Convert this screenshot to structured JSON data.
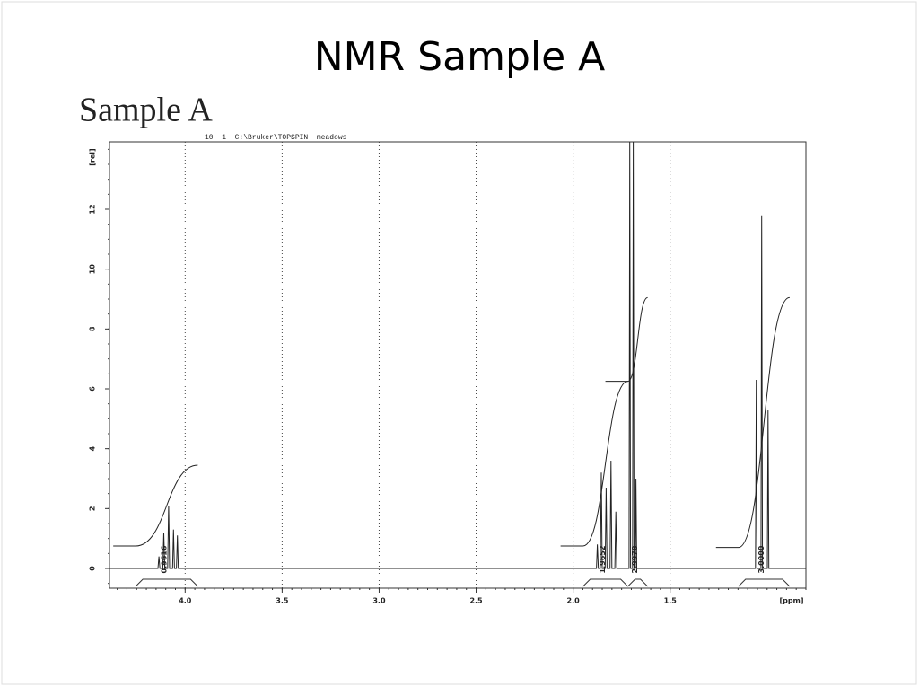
{
  "title": "NMR Sample A",
  "chart_data": {
    "type": "spectrum",
    "title": "Sample A",
    "header": "10  1  C:\\Bruker\\TOPSPIN  meadows",
    "x_label": "[ppm]",
    "y_label": "[rel]",
    "color": "#222222",
    "grid": true,
    "xlim": [
      4.39,
      0.8
    ],
    "ylim": [
      -0.66,
      14.25
    ],
    "xticks": [
      {
        "value": 4.0,
        "label": "4.0"
      },
      3.5,
      {
        "value": 3.0,
        "label": "3.0"
      },
      2.5,
      {
        "value": 2.0,
        "label": "2.0"
      },
      1.5
    ],
    "yticks": [
      0,
      2,
      4,
      6,
      8,
      10,
      12
    ],
    "x": [
      4.39,
      4.14,
      4.135,
      4.13,
      4.115,
      4.11,
      4.105,
      4.09,
      4.085,
      4.08,
      4.065,
      4.06,
      4.055,
      4.045,
      4.04,
      4.035,
      1.88,
      1.875,
      1.87,
      1.86,
      1.855,
      1.85,
      1.835,
      1.83,
      1.825,
      1.81,
      1.805,
      1.8,
      1.785,
      1.78,
      1.775,
      1.712,
      1.708,
      1.704,
      1.694,
      1.69,
      1.686,
      1.68,
      1.676,
      1.672,
      1.06,
      1.056,
      1.052,
      1.032,
      1.028,
      1.024,
      0.999,
      0.995,
      0.991,
      0.8
    ],
    "values": [
      0,
      0,
      0.4,
      0,
      0,
      1.2,
      0,
      0,
      2.1,
      0,
      0,
      1.3,
      0,
      0,
      1.1,
      0,
      0,
      0.8,
      0,
      0,
      3.2,
      0,
      0,
      2.7,
      0,
      0,
      3.6,
      0,
      0,
      1.9,
      0,
      0,
      14.25,
      0,
      0,
      14.25,
      0,
      0,
      3.0,
      0,
      0,
      6.3,
      0,
      0,
      11.8,
      0,
      0,
      5.3,
      0,
      0
    ],
    "integrals": [
      {
        "from": 4.255,
        "to": 3.935,
        "start": 0.75,
        "end": 3.45,
        "label": "0.9616"
      },
      {
        "from": 1.949,
        "to": 1.718,
        "start": 0.75,
        "end": 6.25,
        "label": "1.9652"
      },
      {
        "from": 1.718,
        "to": 1.616,
        "start": 6.25,
        "end": 9.05,
        "label": "2.9978"
      },
      {
        "from": 1.148,
        "to": 0.884,
        "start": 0.7,
        "end": 9.05,
        "label": "3.0000"
      }
    ]
  }
}
